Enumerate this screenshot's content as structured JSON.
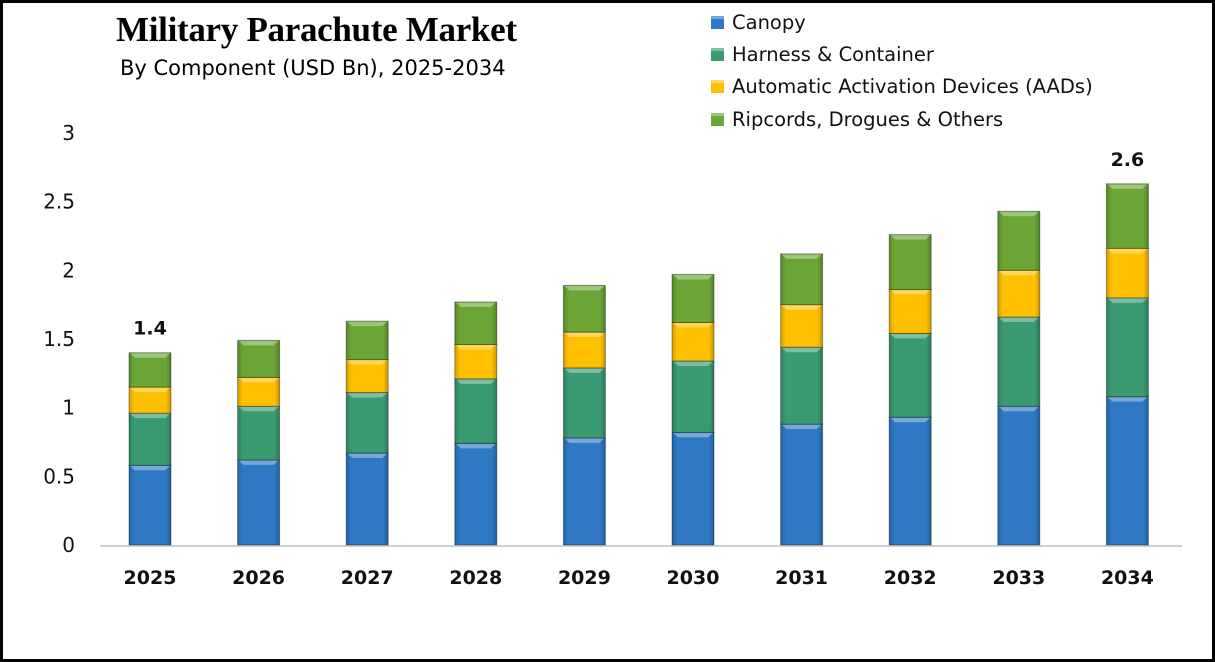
{
  "chart_data": {
    "type": "bar",
    "stacked": true,
    "title": "Military Parachute Market",
    "subtitle": "By Component (USD Bn), 2025-2034",
    "xlabel": "",
    "ylabel": "",
    "ylim": [
      0,
      3
    ],
    "yticks": [
      "0",
      "0.5",
      "1",
      "1.5",
      "2",
      "2.5",
      "3"
    ],
    "ytick_values": [
      0,
      0.5,
      1,
      1.5,
      2,
      2.5,
      3
    ],
    "grid": false,
    "legend_position": "top-right",
    "categories": [
      "2025",
      "2026",
      "2027",
      "2028",
      "2029",
      "2030",
      "2031",
      "2032",
      "2033",
      "2034"
    ],
    "series": [
      {
        "name": "Canopy",
        "color": "#2f78c4",
        "values": [
          0.58,
          0.62,
          0.67,
          0.74,
          0.78,
          0.82,
          0.88,
          0.93,
          1.01,
          1.08
        ]
      },
      {
        "name": "Harness & Container",
        "color": "#3a9a72",
        "values": [
          0.38,
          0.39,
          0.44,
          0.47,
          0.51,
          0.52,
          0.56,
          0.61,
          0.65,
          0.72
        ]
      },
      {
        "name": "Automatic Activation Devices (AADs)",
        "color": "#ffc000",
        "values": [
          0.19,
          0.21,
          0.24,
          0.25,
          0.26,
          0.28,
          0.31,
          0.32,
          0.34,
          0.36
        ]
      },
      {
        "name": "Ripcords, Drogues & Others",
        "color": "#6aa536",
        "values": [
          0.25,
          0.27,
          0.28,
          0.31,
          0.34,
          0.35,
          0.37,
          0.4,
          0.43,
          0.47
        ]
      }
    ],
    "data_labels": [
      {
        "category": "2025",
        "text": "1.4"
      },
      {
        "category": "2034",
        "text": "2.6"
      }
    ]
  }
}
